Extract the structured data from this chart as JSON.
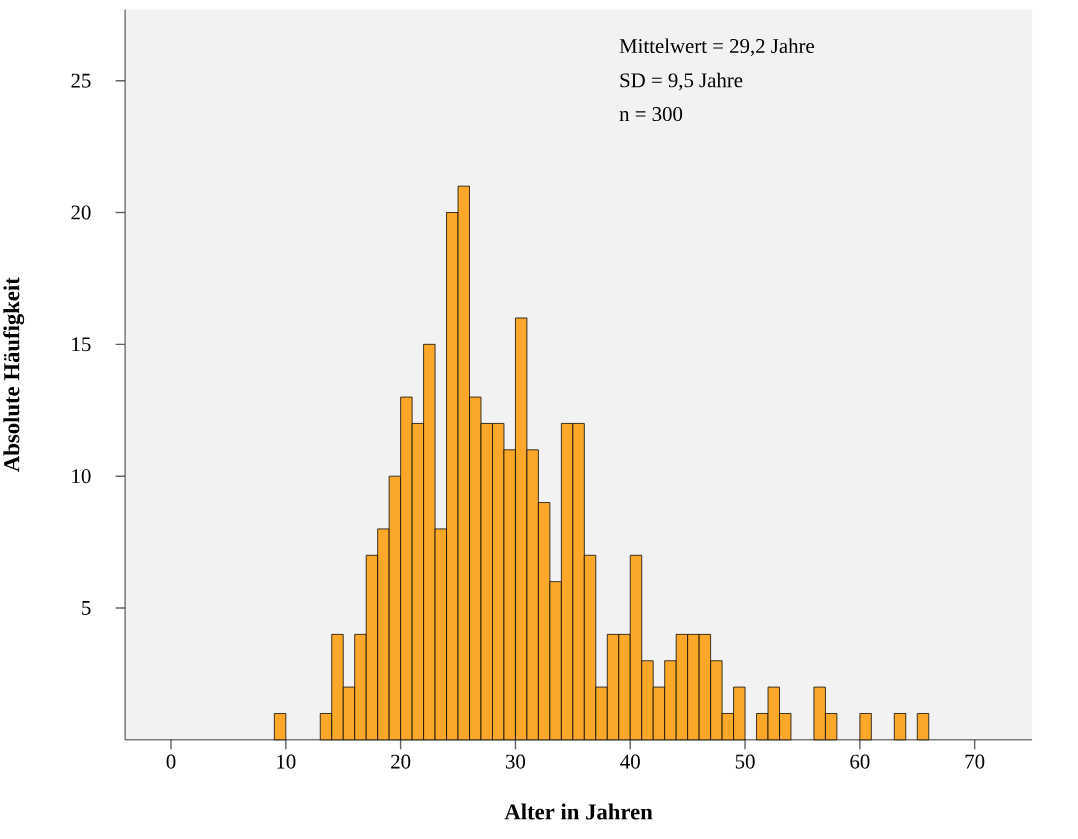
{
  "chart_data": {
    "type": "histogram",
    "xlabel": "Alter in Jahren",
    "ylabel": "Absolute Häufigkeit",
    "annotations": [
      "Mittelwert = 29,2 Jahre",
      "SD = 9,5 Jahre",
      "n = 300"
    ],
    "bins": [
      9,
      10,
      11,
      12,
      13,
      14,
      15,
      16,
      17,
      18,
      19,
      20,
      21,
      22,
      23,
      24,
      25,
      26,
      27,
      28,
      29,
      30,
      31,
      32,
      33,
      34,
      35,
      36,
      37,
      38,
      39,
      40,
      41,
      42,
      43,
      44,
      45,
      46,
      47,
      48,
      49,
      50,
      51,
      52,
      53,
      54,
      55,
      56,
      57,
      58,
      59,
      60,
      61,
      62,
      63,
      64,
      65,
      66
    ],
    "values": [
      1,
      0,
      0,
      0,
      1,
      4,
      2,
      4,
      7,
      8,
      10,
      13,
      12,
      15,
      8,
      20,
      21,
      13,
      12,
      12,
      11,
      16,
      11,
      9,
      6,
      12,
      12,
      7,
      2,
      4,
      4,
      7,
      3,
      2,
      3,
      4,
      4,
      4,
      3,
      1,
      2,
      0,
      1,
      2,
      1,
      0,
      0,
      2,
      1,
      0,
      0,
      1,
      0,
      0,
      1,
      0,
      1
    ],
    "color": "#fba82a",
    "xlim": [
      -4,
      75
    ],
    "ylim": [
      0,
      27.7
    ],
    "xticks": [
      0,
      10,
      20,
      30,
      40,
      50,
      60,
      70
    ],
    "yticks": [
      5,
      10,
      15,
      20,
      25
    ]
  }
}
